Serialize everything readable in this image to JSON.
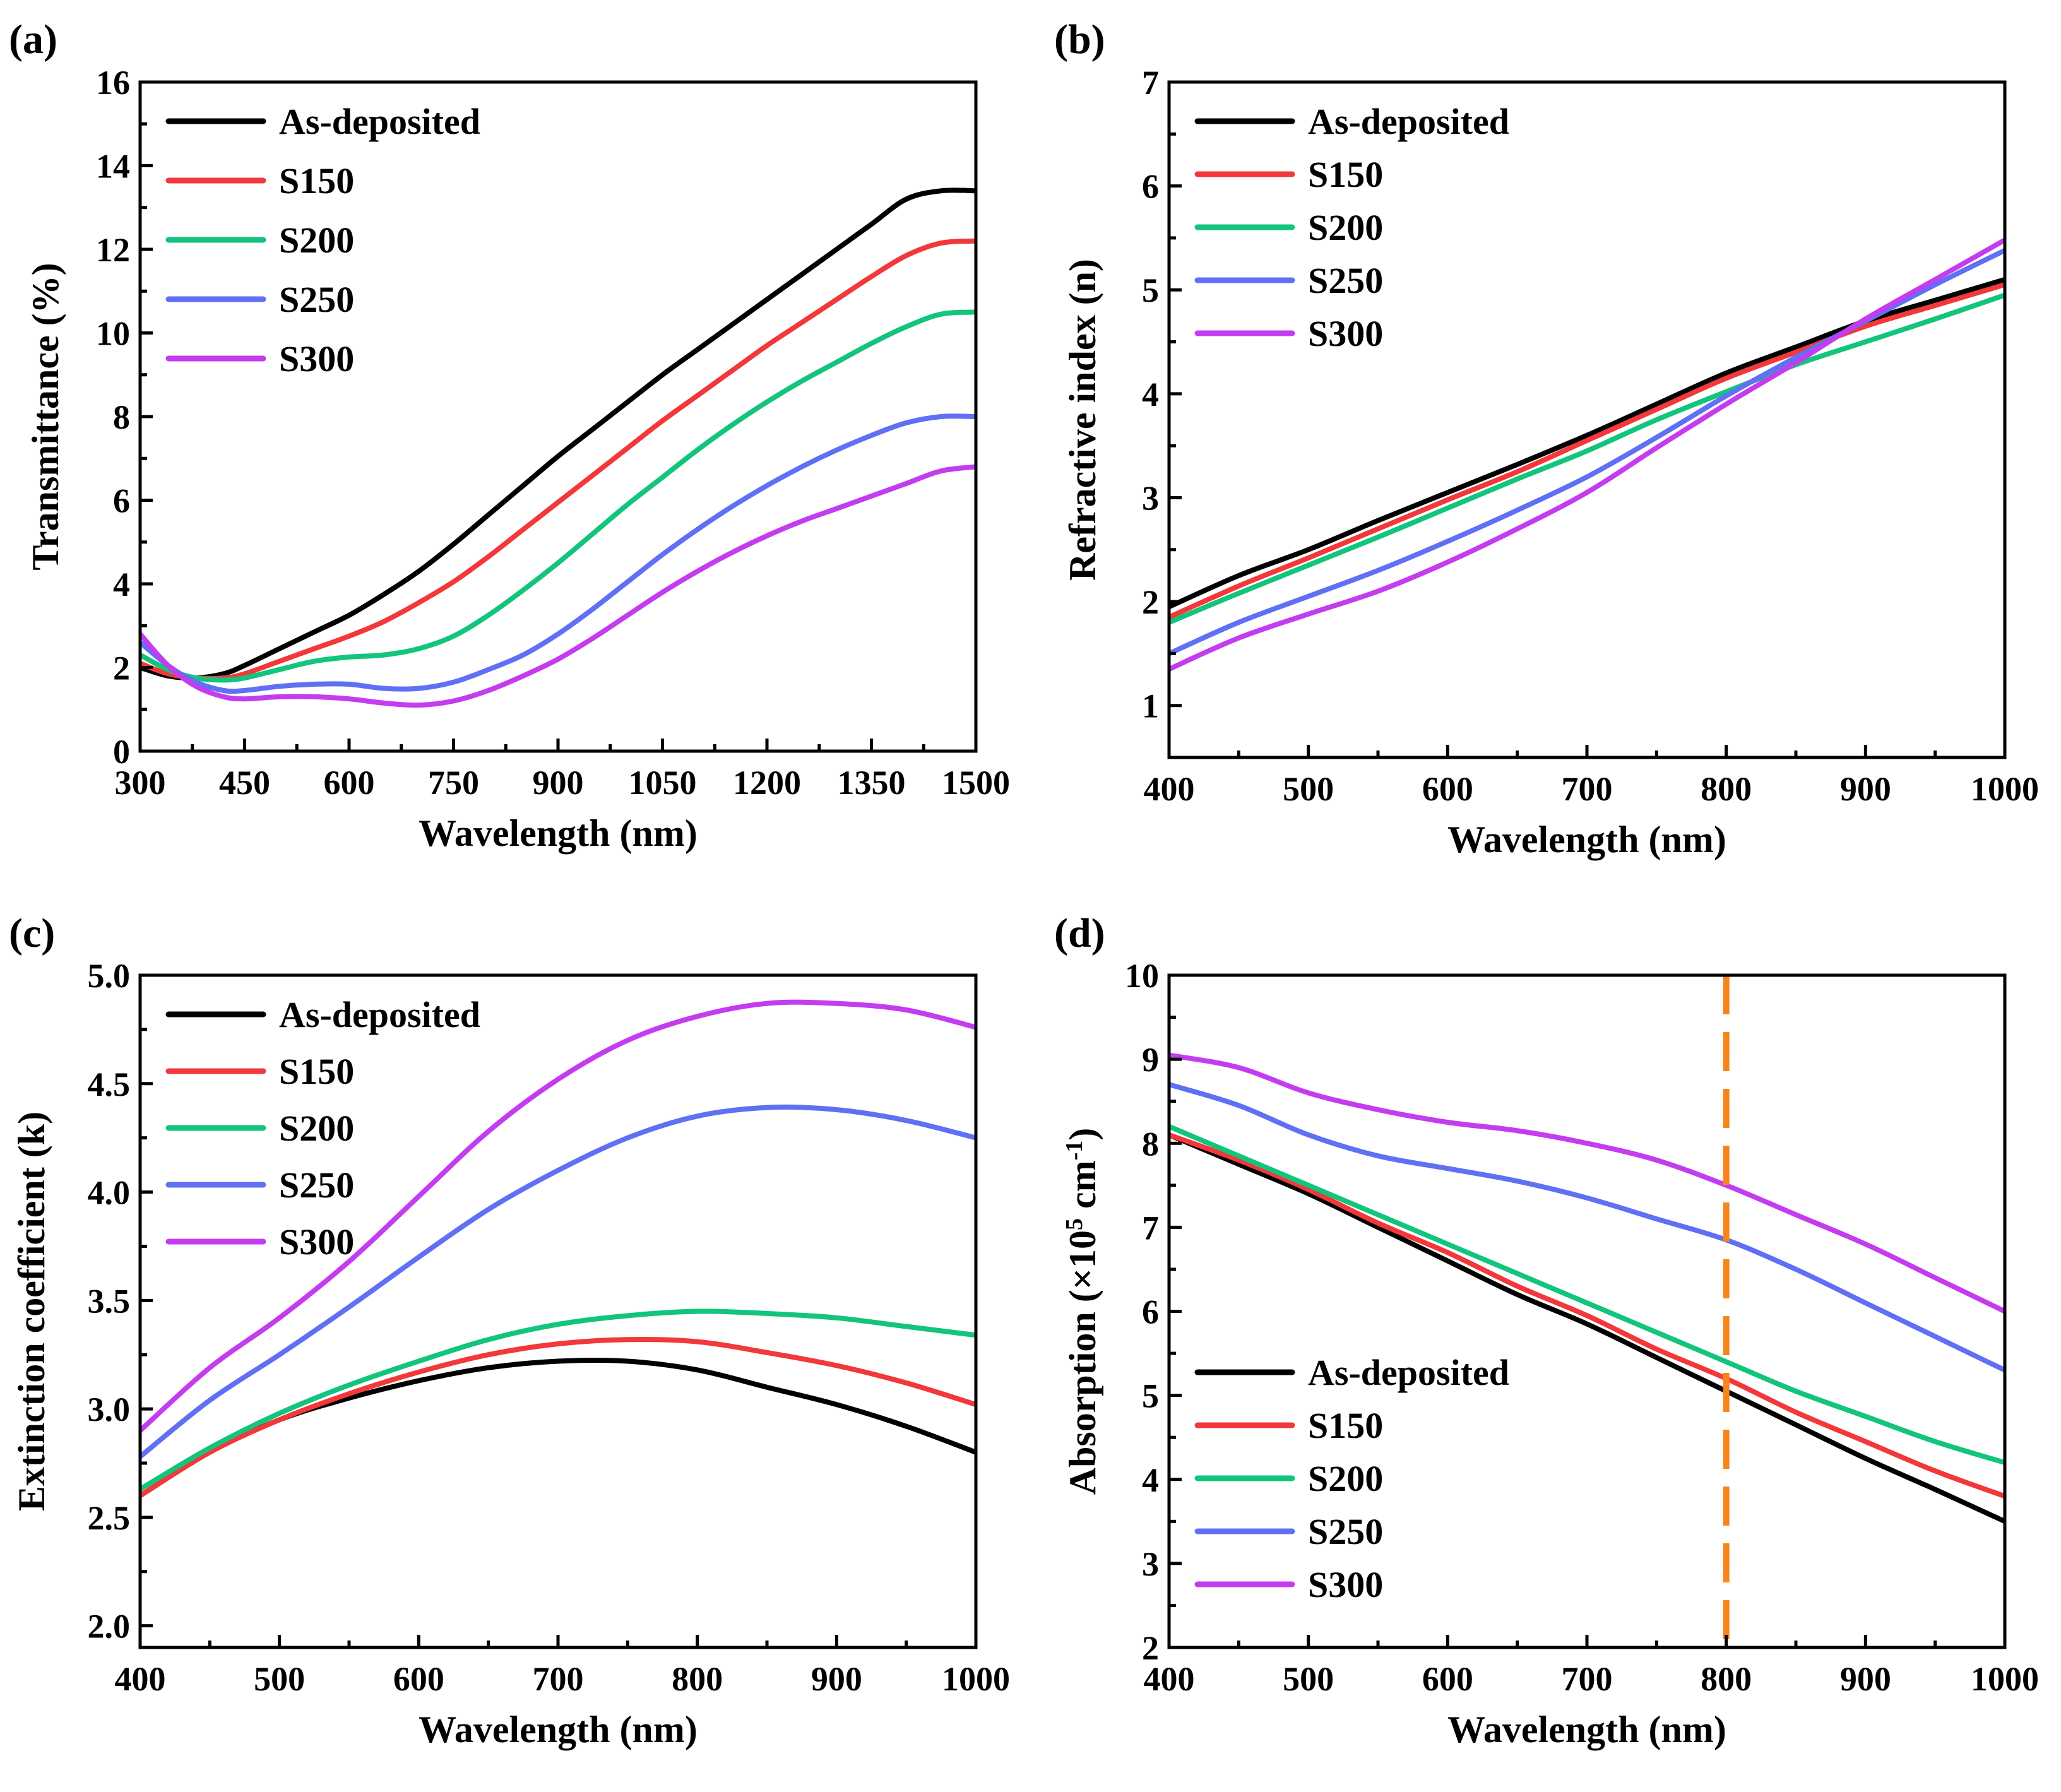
{
  "figure": {
    "series_colors": {
      "As-deposited": "#000000",
      "S150": "#f2383a",
      "S200": "#12c47c",
      "S250": "#6070f4",
      "S300": "#c43cf0"
    },
    "marker_color": "#f7851c"
  },
  "chart_data": [
    {
      "id": "a",
      "type": "line",
      "panel_label": "(a)",
      "xlabel": "Wavelength (nm)",
      "ylabel": "Transmittance (%)",
      "xlim": [
        300,
        1500
      ],
      "ylim": [
        0,
        16
      ],
      "xticks": [
        300,
        450,
        600,
        750,
        900,
        1050,
        1200,
        1350,
        1500
      ],
      "xtick_labels": [
        "300",
        "450",
        "600",
        "750",
        "900",
        "1050",
        "1200",
        "1350",
        "1500"
      ],
      "yticks": [
        0,
        2,
        4,
        6,
        8,
        10,
        12,
        14,
        16
      ],
      "ytick_labels": [
        "0",
        "2",
        "4",
        "6",
        "8",
        "10",
        "12",
        "14",
        "16"
      ],
      "legend_position": "top-left",
      "x": [
        300,
        340,
        380,
        420,
        450,
        500,
        550,
        600,
        650,
        700,
        750,
        800,
        850,
        900,
        950,
        1000,
        1050,
        1100,
        1150,
        1200,
        1250,
        1300,
        1350,
        1400,
        1450,
        1500
      ],
      "series": [
        {
          "name": "As-deposited",
          "values": [
            2.0,
            1.8,
            1.75,
            1.85,
            2.05,
            2.45,
            2.85,
            3.25,
            3.75,
            4.3,
            4.95,
            5.65,
            6.35,
            7.05,
            7.7,
            8.35,
            9.0,
            9.6,
            10.2,
            10.8,
            11.4,
            12.0,
            12.6,
            13.2,
            13.4,
            13.4
          ]
        },
        {
          "name": "S150",
          "values": [
            2.1,
            1.85,
            1.75,
            1.75,
            1.85,
            2.15,
            2.45,
            2.75,
            3.1,
            3.55,
            4.05,
            4.65,
            5.3,
            5.95,
            6.6,
            7.25,
            7.9,
            8.5,
            9.1,
            9.7,
            10.25,
            10.8,
            11.35,
            11.85,
            12.15,
            12.2
          ]
        },
        {
          "name": "S200",
          "values": [
            2.3,
            1.95,
            1.75,
            1.7,
            1.75,
            1.95,
            2.15,
            2.25,
            2.3,
            2.45,
            2.75,
            3.25,
            3.85,
            4.5,
            5.2,
            5.9,
            6.55,
            7.2,
            7.8,
            8.35,
            8.85,
            9.3,
            9.75,
            10.15,
            10.45,
            10.5
          ]
        },
        {
          "name": "S250",
          "values": [
            2.6,
            2.05,
            1.65,
            1.45,
            1.45,
            1.55,
            1.6,
            1.6,
            1.5,
            1.5,
            1.65,
            1.95,
            2.3,
            2.8,
            3.4,
            4.05,
            4.7,
            5.3,
            5.85,
            6.35,
            6.8,
            7.2,
            7.55,
            7.85,
            8.0,
            8.0
          ]
        },
        {
          "name": "S300",
          "values": [
            2.8,
            2.05,
            1.55,
            1.3,
            1.25,
            1.3,
            1.3,
            1.25,
            1.15,
            1.1,
            1.2,
            1.45,
            1.8,
            2.2,
            2.7,
            3.25,
            3.8,
            4.3,
            4.75,
            5.15,
            5.5,
            5.8,
            6.1,
            6.4,
            6.7,
            6.8
          ]
        }
      ]
    },
    {
      "id": "b",
      "type": "line",
      "panel_label": "(b)",
      "xlabel": "Wavelength (nm)",
      "ylabel": "Refractive index (n)",
      "xlim": [
        400,
        1000
      ],
      "ylim": [
        0.5,
        7
      ],
      "xticks": [
        400,
        500,
        600,
        700,
        800,
        900,
        1000
      ],
      "xtick_labels": [
        "400",
        "500",
        "600",
        "700",
        "800",
        "900",
        "1000"
      ],
      "yticks": [
        1,
        2,
        3,
        4,
        5,
        6,
        7
      ],
      "ytick_labels": [
        "1",
        "2",
        "3",
        "4",
        "5",
        "6",
        "7"
      ],
      "legend_position": "top-left",
      "x": [
        400,
        450,
        500,
        550,
        600,
        650,
        700,
        750,
        800,
        850,
        900,
        950,
        1000
      ],
      "series": [
        {
          "name": "As-deposited",
          "values": [
            1.95,
            2.25,
            2.5,
            2.78,
            3.05,
            3.32,
            3.6,
            3.9,
            4.2,
            4.45,
            4.7,
            4.9,
            5.1
          ]
        },
        {
          "name": "S150",
          "values": [
            1.85,
            2.15,
            2.42,
            2.7,
            2.98,
            3.25,
            3.55,
            3.85,
            4.15,
            4.4,
            4.65,
            4.85,
            5.05
          ]
        },
        {
          "name": "S200",
          "values": [
            1.8,
            2.08,
            2.35,
            2.62,
            2.9,
            3.18,
            3.45,
            3.75,
            4.02,
            4.28,
            4.5,
            4.72,
            4.95
          ]
        },
        {
          "name": "S250",
          "values": [
            1.5,
            1.8,
            2.05,
            2.3,
            2.58,
            2.88,
            3.2,
            3.58,
            3.98,
            4.35,
            4.7,
            5.05,
            5.38
          ]
        },
        {
          "name": "S300",
          "values": [
            1.35,
            1.65,
            1.88,
            2.1,
            2.38,
            2.7,
            3.05,
            3.48,
            3.9,
            4.3,
            4.72,
            5.1,
            5.48
          ]
        }
      ]
    },
    {
      "id": "c",
      "type": "line",
      "panel_label": "(c)",
      "xlabel": "Wavelength (nm)",
      "ylabel": "Extinction coefficient (k)",
      "xlim": [
        400,
        1000
      ],
      "ylim": [
        1.9,
        5.0
      ],
      "xticks": [
        400,
        500,
        600,
        700,
        800,
        900,
        1000
      ],
      "xtick_labels": [
        "400",
        "500",
        "600",
        "700",
        "800",
        "900",
        "1000"
      ],
      "yticks": [
        2.0,
        2.5,
        3.0,
        3.5,
        4.0,
        4.5,
        5.0
      ],
      "ytick_labels": [
        "2.0",
        "2.5",
        "3.0",
        "3.5",
        "4.0",
        "4.5",
        "5.0"
      ],
      "legend_position": "top-left",
      "x": [
        400,
        450,
        500,
        550,
        600,
        650,
        700,
        750,
        800,
        850,
        900,
        950,
        1000
      ],
      "series": [
        {
          "name": "As-deposited",
          "values": [
            2.6,
            2.8,
            2.95,
            3.05,
            3.13,
            3.19,
            3.22,
            3.22,
            3.18,
            3.1,
            3.02,
            2.92,
            2.8
          ]
        },
        {
          "name": "S150",
          "values": [
            2.6,
            2.8,
            2.95,
            3.07,
            3.17,
            3.25,
            3.3,
            3.32,
            3.31,
            3.26,
            3.2,
            3.12,
            3.02
          ]
        },
        {
          "name": "S200",
          "values": [
            2.63,
            2.82,
            2.98,
            3.11,
            3.22,
            3.32,
            3.39,
            3.43,
            3.45,
            3.44,
            3.42,
            3.38,
            3.34
          ]
        },
        {
          "name": "S250",
          "values": [
            2.78,
            3.04,
            3.25,
            3.47,
            3.7,
            3.92,
            4.1,
            4.25,
            4.35,
            4.39,
            4.38,
            4.33,
            4.25
          ]
        },
        {
          "name": "S300",
          "values": [
            2.9,
            3.19,
            3.42,
            3.68,
            3.98,
            4.28,
            4.52,
            4.7,
            4.81,
            4.87,
            4.87,
            4.84,
            4.76
          ]
        }
      ]
    },
    {
      "id": "d",
      "type": "line",
      "panel_label": "(d)",
      "xlabel": "Wavelength (nm)",
      "ylabel_main": "Absorption (×10",
      "ylabel_sup1": "5",
      "ylabel_mid": " cm",
      "ylabel_sup2": "-1",
      "ylabel_end": ")",
      "xlim": [
        400,
        1000
      ],
      "ylim": [
        2,
        10
      ],
      "xticks": [
        400,
        500,
        600,
        700,
        800,
        900,
        1000
      ],
      "xtick_labels": [
        "400",
        "500",
        "600",
        "700",
        "800",
        "900",
        "1000"
      ],
      "yticks": [
        2,
        3,
        4,
        5,
        6,
        7,
        8,
        9,
        10
      ],
      "ytick_labels": [
        "2",
        "3",
        "4",
        "5",
        "6",
        "7",
        "8",
        "9",
        "10"
      ],
      "legend_position": "bottom-left",
      "vertical_marker_x": 800,
      "x": [
        400,
        450,
        500,
        550,
        600,
        650,
        700,
        750,
        800,
        850,
        900,
        950,
        1000
      ],
      "series": [
        {
          "name": "As-deposited",
          "values": [
            8.1,
            7.75,
            7.4,
            7.0,
            6.6,
            6.2,
            5.85,
            5.45,
            5.05,
            4.65,
            4.25,
            3.88,
            3.5
          ]
        },
        {
          "name": "S150",
          "values": [
            8.1,
            7.8,
            7.45,
            7.05,
            6.7,
            6.3,
            5.95,
            5.55,
            5.2,
            4.8,
            4.45,
            4.1,
            3.8
          ]
        },
        {
          "name": "S200",
          "values": [
            8.2,
            7.85,
            7.5,
            7.15,
            6.8,
            6.45,
            6.1,
            5.75,
            5.4,
            5.05,
            4.75,
            4.45,
            4.2
          ]
        },
        {
          "name": "S250",
          "values": [
            8.7,
            8.45,
            8.1,
            7.85,
            7.7,
            7.55,
            7.35,
            7.1,
            6.85,
            6.5,
            6.1,
            5.7,
            5.3
          ]
        },
        {
          "name": "S300",
          "values": [
            9.05,
            8.9,
            8.6,
            8.4,
            8.25,
            8.15,
            8.0,
            7.8,
            7.5,
            7.15,
            6.8,
            6.4,
            6.0
          ]
        }
      ]
    }
  ]
}
